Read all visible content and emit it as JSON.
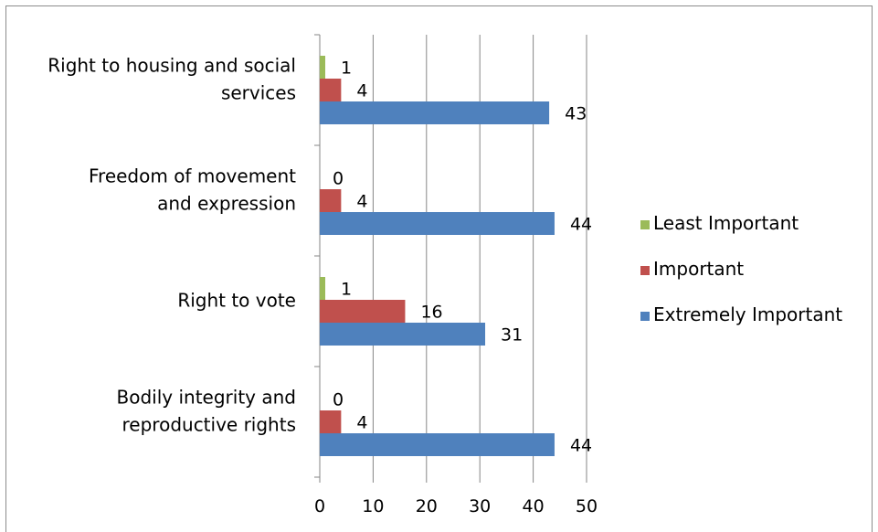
{
  "chart_data": {
    "type": "bar",
    "orientation": "horizontal",
    "categories": [
      [
        "Right to housing and social",
        "services"
      ],
      [
        "Freedom of movement",
        "and expression"
      ],
      [
        "Right to vote"
      ],
      [
        "Bodily integrity and",
        "reproductive rights"
      ]
    ],
    "series": [
      {
        "name": "Least Important",
        "color": "#9bbb59",
        "values": [
          1,
          0,
          1,
          0
        ]
      },
      {
        "name": "Important",
        "color": "#c0504d",
        "values": [
          4,
          4,
          16,
          4
        ]
      },
      {
        "name": "Extremely Important",
        "color": "#4f81bd",
        "values": [
          43,
          44,
          31,
          44
        ]
      }
    ],
    "xlim": [
      0,
      50
    ],
    "ticks": [
      "0",
      "10",
      "20",
      "30",
      "40",
      "50"
    ],
    "grid": true,
    "legend_position": "right"
  }
}
